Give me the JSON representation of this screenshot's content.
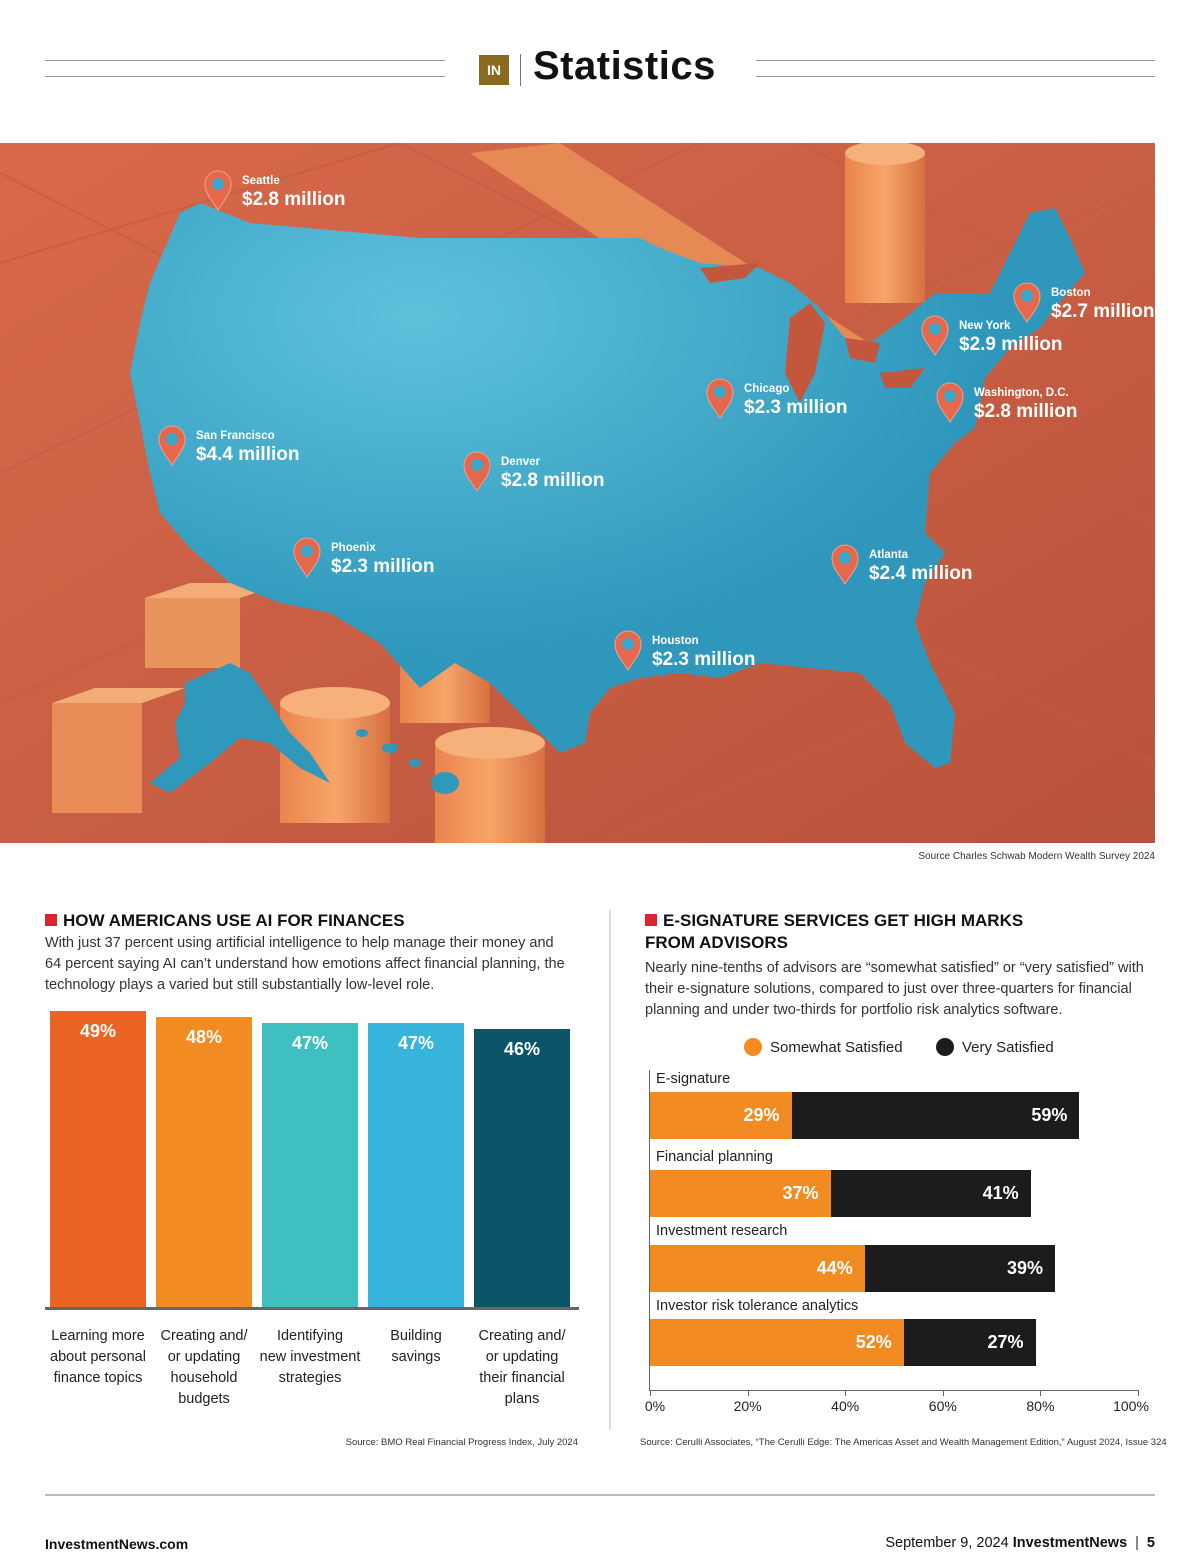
{
  "header": {
    "logo_text": "IN",
    "section_title": "Statistics"
  },
  "map": {
    "cities": [
      {
        "name": "Seattle",
        "value": "$2.8 million"
      },
      {
        "name": "San Francisco",
        "value": "$4.4 million"
      },
      {
        "name": "Phoenix",
        "value": "$2.3 million"
      },
      {
        "name": "Denver",
        "value": "$2.8 million"
      },
      {
        "name": "Houston",
        "value": "$2.3 million"
      },
      {
        "name": "Chicago",
        "value": "$2.3 million"
      },
      {
        "name": "Atlanta",
        "value": "$2.4 million"
      },
      {
        "name": "Washington, D.C.",
        "value": "$2.8 million"
      },
      {
        "name": "New York",
        "value": "$2.9 million"
      },
      {
        "name": "Boston",
        "value": "$2.7 million"
      }
    ],
    "source": "Source Charles Schwab Modern Wealth Survey 2024"
  },
  "ai_section": {
    "title": "HOW AMERICANS USE AI FOR FINANCES",
    "description": "With just 37 percent using artificial intelligence to help manage their money and 64 percent saying AI can’t understand how emotions affect financial planning, the technology plays a varied but still substantially low-level role.",
    "source": "Source: BMO Real Financial Progress Index, July 2024"
  },
  "esig_section": {
    "title_line1": "E-SIGNATURE SERVICES GET HIGH MARKS",
    "title_line2": "FROM ADVISORS",
    "description": "Nearly nine-tenths of advisors are “somewhat satisfied” or “very satisfied” with their e-signature solutions, compared to just over three-quarters for financial planning and under two-thirds for portfolio risk analytics software.",
    "source": "Source: Cerulli Associates, “The Cerulli Edge: The Americas Asset and Wealth Management Edition,” August 2024, Issue 324"
  },
  "chart_data": [
    {
      "type": "bar",
      "title": "HOW AMERICANS USE AI FOR FINANCES",
      "categories": [
        "Learning more about personal finance topics",
        "Creating and/ or updating household budgets",
        "Identifying new investment strategies",
        "Building savings",
        "Creating and/ or updating their financial plans"
      ],
      "category_lines": [
        [
          "Learning more",
          "about personal",
          "finance topics"
        ],
        [
          "Creating and/",
          "or updating",
          "household",
          "budgets"
        ],
        [
          "Identifying",
          "new investment",
          "strategies"
        ],
        [
          "Building",
          "savings"
        ],
        [
          "Creating and/",
          "or updating",
          "their financial",
          "plans"
        ]
      ],
      "values": [
        49,
        48,
        47,
        47,
        46
      ],
      "value_labels": [
        "49%",
        "48%",
        "47%",
        "47%",
        "46%"
      ],
      "colors": [
        "#ec6424",
        "#f28b22",
        "#3fc0c0",
        "#36b4dc",
        "#0c5568"
      ],
      "ylim": [
        0,
        50
      ]
    },
    {
      "type": "bar",
      "orientation": "horizontal",
      "stacked": true,
      "title": "E-SIGNATURE SERVICES GET HIGH MARKS FROM ADVISORS",
      "categories": [
        "E-signature",
        "Financial planning",
        "Investment research",
        "Investor risk tolerance analytics"
      ],
      "series": [
        {
          "name": "Somewhat Satisfied",
          "color": "#f28b22",
          "values": [
            29,
            37,
            44,
            52
          ],
          "labels": [
            "29%",
            "37%",
            "44%",
            "52%"
          ]
        },
        {
          "name": "Very Satisfied",
          "color": "#1c1c1c",
          "values": [
            59,
            41,
            39,
            27
          ],
          "labels": [
            "59%",
            "41%",
            "39%",
            "27%"
          ]
        }
      ],
      "xlim": [
        0,
        100
      ],
      "xticks": [
        "0%",
        "20%",
        "40%",
        "60%",
        "80%",
        "100%"
      ],
      "legend": "top"
    }
  ],
  "footer": {
    "website": "InvestmentNews.com",
    "date": "September 9, 2024",
    "brand": "InvestmentNews",
    "page": "5"
  }
}
